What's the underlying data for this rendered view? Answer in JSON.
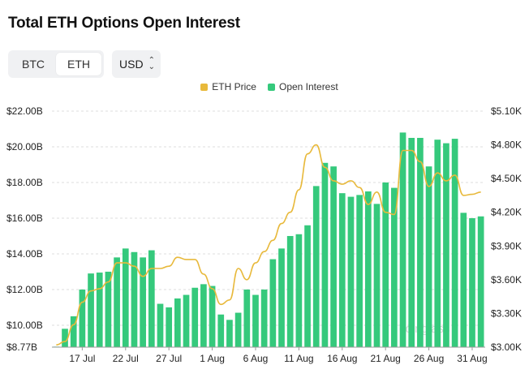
{
  "title": "Total ETH Options Open Interest",
  "asset_toggle": {
    "options": [
      "BTC",
      "ETH"
    ],
    "selected": "ETH"
  },
  "currency_select": {
    "value": "USD"
  },
  "legend": {
    "price_label": "ETH Price",
    "oi_label": "Open Interest"
  },
  "watermark": "coinglass",
  "colors": {
    "price": "#e8b93b",
    "oi": "#35c97c",
    "grid": "#dcdcdc"
  },
  "chart_data": {
    "type": "bar",
    "left_axis": {
      "ticks": [
        "$8.77B",
        "$10.00B",
        "$12.00B",
        "$14.00B",
        "$16.00B",
        "$18.00B",
        "$20.00B",
        "$22.00B"
      ],
      "min": 8.77,
      "max": 22.0
    },
    "right_axis": {
      "ticks": [
        "$3.00K",
        "$3.30K",
        "$3.60K",
        "$3.90K",
        "$4.20K",
        "$4.50K",
        "$4.80K",
        "$5.10K"
      ],
      "min": 3.0,
      "max": 5.1
    },
    "x_labels": [
      "17 Jul",
      "22 Jul",
      "27 Jul",
      "1 Aug",
      "6 Aug",
      "11 Aug",
      "16 Aug",
      "21 Aug",
      "26 Aug",
      "31 Aug"
    ],
    "x_label_index": [
      3,
      8,
      13,
      18,
      23,
      28,
      33,
      38,
      43,
      48
    ],
    "open_interest": [
      8.8,
      9.8,
      10.5,
      12.0,
      12.9,
      12.95,
      13.0,
      13.8,
      14.3,
      14.1,
      13.8,
      14.2,
      11.2,
      11.0,
      11.5,
      11.7,
      12.1,
      12.3,
      12.2,
      10.6,
      10.3,
      10.7,
      12.0,
      11.7,
      12.0,
      13.7,
      14.3,
      15.0,
      15.1,
      15.6,
      17.8,
      19.1,
      18.9,
      17.4,
      17.2,
      17.3,
      17.5,
      16.8,
      18.0,
      17.7,
      20.8,
      20.5,
      20.5,
      18.9,
      20.4,
      20.2,
      20.45,
      16.3,
      16.0,
      16.1
    ],
    "eth_price": [
      3.02,
      3.05,
      3.2,
      3.4,
      3.5,
      3.52,
      3.58,
      3.75,
      3.75,
      3.72,
      3.63,
      3.7,
      3.7,
      3.72,
      3.8,
      3.78,
      3.78,
      3.65,
      3.52,
      3.38,
      3.42,
      3.7,
      3.6,
      3.75,
      3.85,
      3.95,
      4.1,
      4.2,
      4.4,
      4.72,
      4.8,
      4.6,
      4.48,
      4.45,
      4.48,
      4.42,
      4.27,
      4.38,
      4.2,
      4.18,
      4.75,
      4.75,
      4.65,
      4.43,
      4.55,
      4.48,
      4.53,
      4.35,
      4.36,
      4.38
    ]
  }
}
